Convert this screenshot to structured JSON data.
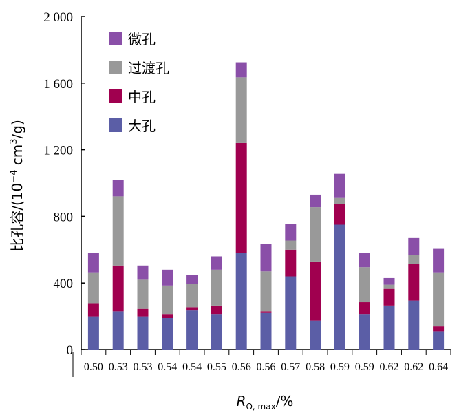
{
  "chart_data": {
    "type": "bar",
    "stacked": true,
    "categories": [
      "0.50",
      "0.53",
      "0.53",
      "0.54",
      "0.54",
      "0.55",
      "0.56",
      "0.56",
      "0.57",
      "0.58",
      "0.59",
      "0.59",
      "0.62",
      "0.62",
      "0.64"
    ],
    "series": [
      {
        "name": "大孔",
        "color": "#5b5ea6",
        "values": [
          200,
          230,
          200,
          190,
          235,
          210,
          580,
          220,
          440,
          175,
          750,
          210,
          265,
          295,
          110
        ]
      },
      {
        "name": "中孔",
        "color": "#a0004f",
        "values": [
          75,
          275,
          45,
          20,
          20,
          55,
          660,
          10,
          160,
          350,
          125,
          75,
          100,
          220,
          30
        ]
      },
      {
        "name": "过渡孔",
        "color": "#999999",
        "values": [
          185,
          415,
          175,
          175,
          140,
          215,
          395,
          240,
          55,
          330,
          35,
          210,
          25,
          55,
          320
        ]
      },
      {
        "name": "微孔",
        "color": "#8a4fa8",
        "values": [
          120,
          100,
          85,
          95,
          55,
          80,
          90,
          165,
          100,
          75,
          145,
          85,
          40,
          100,
          145
        ]
      }
    ],
    "legend_order": [
      "微孔",
      "过渡孔",
      "中孔",
      "大孔"
    ],
    "ylim": [
      0,
      2000
    ],
    "yticks": [
      "0",
      "400",
      "800",
      "1 200",
      "1 600",
      "2 000"
    ],
    "ytick_values": [
      0,
      400,
      800,
      1200,
      1600,
      2000
    ],
    "ylabel_prefix": "比孔容/(10",
    "ylabel_exp1": "−4",
    "ylabel_mid": " cm",
    "ylabel_exp2": "3",
    "ylabel_suffix": "/g)",
    "xlabel_main": "R",
    "xlabel_sub": "O, max",
    "xlabel_suffix": "/%",
    "legend_position": "top-left"
  }
}
